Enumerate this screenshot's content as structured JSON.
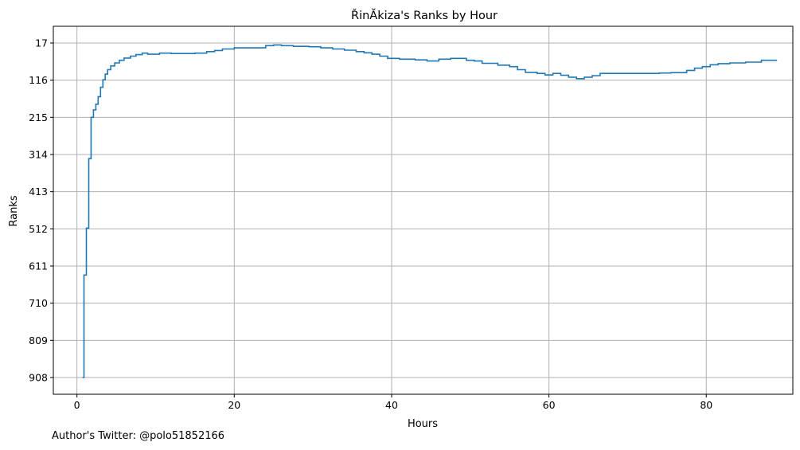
{
  "chart_data": {
    "type": "line",
    "step": true,
    "title": "ŘinĂkiza's Ranks by Hour",
    "xlabel": "Hours",
    "ylabel": "Ranks",
    "xlim": [
      -3,
      91
    ],
    "ylim": [
      17,
      908
    ],
    "y_inverted": true,
    "grid": true,
    "color": "#1f77b4",
    "xticks": [
      0,
      20,
      40,
      60,
      80
    ],
    "yticks": [
      17,
      116,
      215,
      314,
      413,
      512,
      611,
      710,
      809,
      908
    ],
    "series": [
      {
        "x": [
          0.7,
          0.9,
          1.2,
          1.5,
          1.8,
          2.1,
          2.4,
          2.7,
          3.0,
          3.3,
          3.6,
          3.9,
          4.3,
          4.8,
          5.4,
          6.0,
          6.8,
          7.5,
          8.3,
          9.0,
          10.5,
          12.0,
          15.0,
          16.5,
          17.5,
          18.5,
          20.0,
          22.0,
          24.0,
          25.0,
          26.0,
          27.5,
          29.5,
          31.0,
          32.5,
          34.0,
          35.5,
          36.5,
          37.5,
          38.5,
          39.5,
          41.0,
          43.0,
          44.5,
          46.0,
          47.5,
          49.5,
          50.5,
          51.5,
          53.5,
          55.0,
          56.0,
          57.0,
          58.5,
          59.5,
          60.5,
          61.5,
          62.5,
          63.5,
          64.5,
          65.5,
          66.5,
          70.0,
          74.0,
          75.5,
          76.5,
          77.5,
          78.5,
          79.5,
          80.5,
          81.5,
          83.0,
          85.0,
          87.0,
          88.0,
          89.0
        ],
        "y": [
          908,
          635,
          510,
          325,
          215,
          195,
          180,
          160,
          135,
          115,
          100,
          88,
          78,
          70,
          63,
          57,
          52,
          48,
          44,
          47,
          44,
          45,
          44,
          40,
          37,
          33,
          30,
          30,
          24,
          22,
          24,
          26,
          27,
          30,
          33,
          36,
          40,
          43,
          47,
          52,
          58,
          60,
          62,
          65,
          60,
          58,
          63,
          65,
          71,
          76,
          80,
          88,
          95,
          98,
          102,
          98,
          103,
          108,
          112,
          108,
          104,
          98,
          98,
          97,
          96,
          96,
          90,
          84,
          80,
          75,
          72,
          70,
          68,
          63,
          63,
          63
        ]
      }
    ]
  },
  "footer": {
    "author_text": "Author's Twitter: @polo51852166"
  }
}
